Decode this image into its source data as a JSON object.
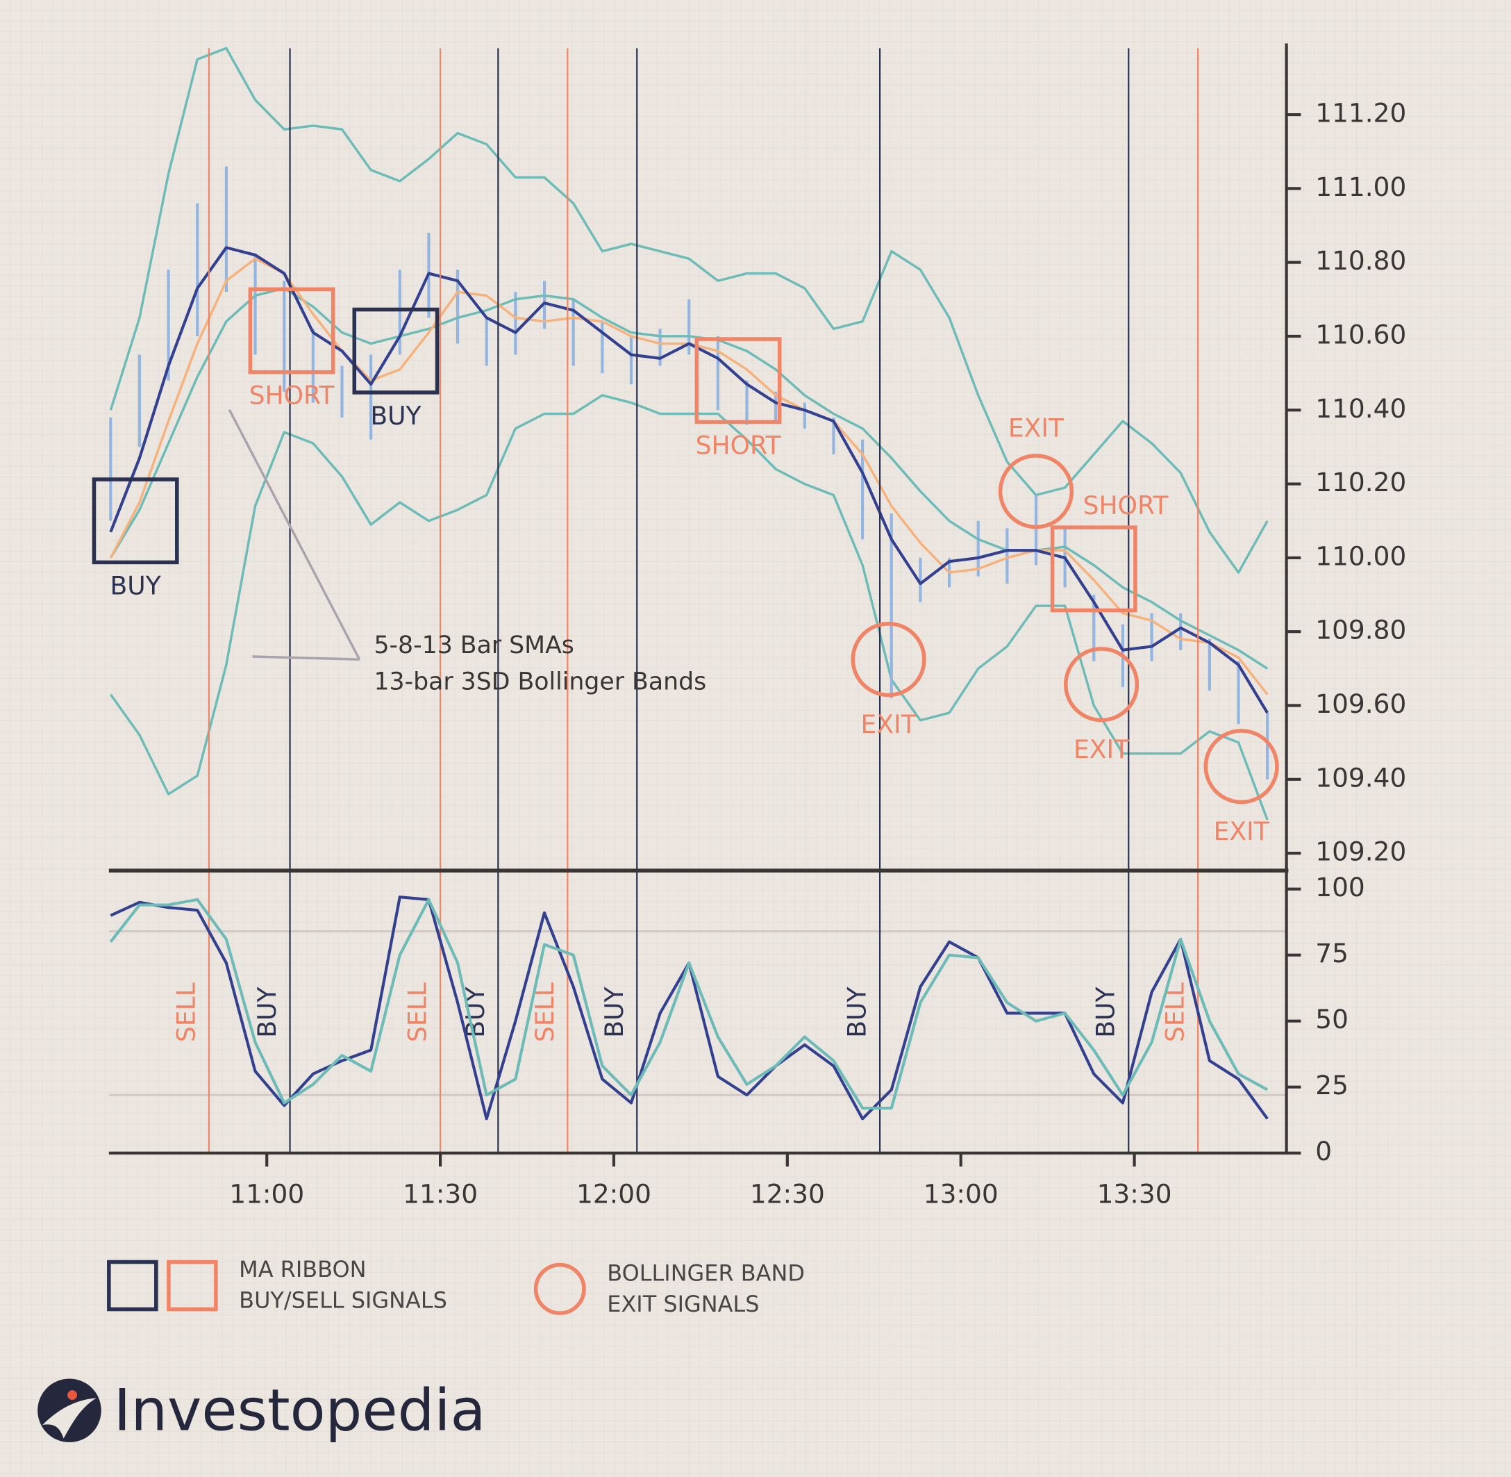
{
  "chart_data": [
    {
      "type": "line",
      "x": [
        633,
        638,
        643,
        648,
        653,
        658,
        663,
        668,
        673,
        678,
        683,
        688,
        693,
        698,
        703,
        708,
        713,
        718,
        723,
        728,
        733,
        738,
        743,
        748,
        753,
        758,
        763,
        768,
        773,
        778,
        783,
        788,
        793,
        798,
        803,
        808,
        813,
        818,
        823,
        828,
        833
      ],
      "xlim": [
        632.7,
        836.3
      ],
      "ylim": [
        109.153,
        111.393
      ],
      "yticks": [
        {
          "value": 109.2,
          "label": "109.20"
        },
        {
          "value": 109.4,
          "label": "109.40"
        },
        {
          "value": 109.6,
          "label": "109.60"
        },
        {
          "value": 109.8,
          "label": "109.80"
        },
        {
          "value": 110,
          "label": "110.00"
        },
        {
          "value": 110.2,
          "label": "110.20"
        },
        {
          "value": 110.4,
          "label": "110.40"
        },
        {
          "value": 110.6,
          "label": "110.60"
        },
        {
          "value": 110.8,
          "label": "110.80"
        },
        {
          "value": 111,
          "label": "111.00"
        },
        {
          "value": 111.2,
          "label": "111.20"
        }
      ],
      "bar_color": "#93b5e1",
      "high": [
        110.38,
        110.55,
        110.78,
        110.96,
        111.06,
        110.82,
        110.75,
        110.62,
        110.52,
        110.55,
        110.78,
        110.88,
        110.78,
        110.65,
        110.72,
        110.75,
        110.7,
        110.64,
        110.6,
        110.62,
        110.7,
        110.6,
        110.48,
        110.45,
        110.42,
        110.38,
        110.32,
        110.12,
        110.0,
        110.0,
        110.1,
        110.08,
        110.17,
        110.08,
        109.9,
        109.82,
        109.85,
        109.85,
        109.78,
        109.72,
        109.58
      ],
      "low": [
        110.1,
        110.3,
        110.48,
        110.6,
        110.72,
        110.55,
        110.45,
        110.42,
        110.38,
        110.32,
        110.55,
        110.65,
        110.58,
        110.52,
        110.55,
        110.62,
        110.52,
        110.5,
        110.47,
        110.52,
        110.55,
        110.4,
        110.36,
        110.37,
        110.35,
        110.28,
        110.05,
        109.62,
        109.88,
        109.92,
        109.95,
        109.93,
        109.98,
        109.92,
        109.72,
        109.65,
        109.72,
        109.75,
        109.64,
        109.55,
        109.4
      ],
      "series": [
        {
          "color": "#6dbbb7",
          "width": 2.5,
          "values": [
            110.4,
            110.65,
            111.04,
            111.35,
            111.38,
            111.24,
            111.16,
            111.17,
            111.16,
            111.05,
            111.02,
            111.08,
            111.15,
            111.12,
            111.03,
            111.03,
            110.96,
            110.83,
            110.85,
            110.83,
            110.81,
            110.75,
            110.77,
            110.77,
            110.73,
            110.62,
            110.64,
            110.83,
            110.78,
            110.65,
            110.44,
            110.26,
            110.17,
            110.19,
            110.28,
            110.37,
            110.31,
            110.23,
            110.07,
            109.96,
            110.1
          ]
        },
        {
          "color": "#6dbbb7",
          "width": 2.5,
          "values": [
            109.63,
            109.52,
            109.36,
            109.41,
            109.71,
            110.14,
            110.34,
            110.31,
            110.22,
            110.09,
            110.15,
            110.1,
            110.13,
            110.17,
            110.35,
            110.39,
            110.39,
            110.44,
            110.42,
            110.39,
            110.39,
            110.39,
            110.32,
            110.24,
            110.2,
            110.17,
            109.98,
            109.67,
            109.56,
            109.58,
            109.7,
            109.76,
            109.87,
            109.87,
            109.6,
            109.47,
            109.47,
            109.47,
            109.53,
            109.5,
            109.29
          ]
        },
        {
          "color": "#6dbbb7",
          "width": 2.5,
          "values": [
            110.0,
            110.13,
            110.31,
            110.49,
            110.64,
            110.71,
            110.73,
            110.68,
            110.61,
            110.58,
            110.6,
            110.62,
            110.65,
            110.67,
            110.7,
            110.71,
            110.7,
            110.65,
            110.61,
            110.6,
            110.6,
            110.59,
            110.56,
            110.51,
            110.44,
            110.39,
            110.35,
            110.27,
            110.18,
            110.1,
            110.05,
            110.02,
            110.02,
            110.03,
            109.98,
            109.92,
            109.88,
            109.83,
            109.79,
            109.75,
            109.7
          ]
        },
        {
          "color": "#f6b27c",
          "width": 2.5,
          "values": [
            110.0,
            110.15,
            110.37,
            110.58,
            110.75,
            110.81,
            110.77,
            110.66,
            110.56,
            110.48,
            110.51,
            110.61,
            110.72,
            110.71,
            110.65,
            110.64,
            110.65,
            110.64,
            110.6,
            110.58,
            110.58,
            110.56,
            110.51,
            110.44,
            110.4,
            110.37,
            110.28,
            110.14,
            110.04,
            109.96,
            109.97,
            110.0,
            110.02,
            110.02,
            109.94,
            109.85,
            109.83,
            109.78,
            109.77,
            109.73,
            109.63
          ]
        },
        {
          "color": "#33408f",
          "width": 3,
          "values": [
            110.07,
            110.27,
            110.52,
            110.73,
            110.84,
            110.82,
            110.77,
            110.61,
            110.56,
            110.47,
            110.6,
            110.77,
            110.75,
            110.65,
            110.61,
            110.69,
            110.67,
            110.61,
            110.55,
            110.54,
            110.58,
            110.54,
            110.47,
            110.42,
            110.4,
            110.37,
            110.23,
            110.05,
            109.93,
            109.99,
            110.0,
            110.02,
            110.02,
            110.0,
            109.88,
            109.75,
            109.76,
            109.81,
            109.77,
            109.71,
            109.58
          ]
        }
      ],
      "annotations": [
        {
          "label": "BUY",
          "shape": "box",
          "color": "#2b3150",
          "x": 637.3,
          "y": 110.1,
          "label_pos": "below"
        },
        {
          "label": "SHORT",
          "shape": "box",
          "color": "#f08466",
          "x": 664.3,
          "y": 110.615,
          "label_pos": "below"
        },
        {
          "label": "BUY",
          "shape": "box",
          "color": "#2b3150",
          "x": 682.3,
          "y": 110.56,
          "label_pos": "below"
        },
        {
          "label": "SHORT",
          "shape": "box",
          "color": "#f08466",
          "x": 741.5,
          "y": 110.48,
          "label_pos": "below"
        },
        {
          "label": "EXIT",
          "shape": "circle",
          "color": "#f08466",
          "x": 767.5,
          "y": 109.725,
          "label_pos": "below"
        },
        {
          "label": "EXIT",
          "shape": "circle",
          "color": "#f08466",
          "x": 793,
          "y": 110.18,
          "label_pos": "above"
        },
        {
          "label": "SHORT",
          "shape": "box",
          "color": "#f08466",
          "x": 803,
          "y": 109.97,
          "label_pos": "above-right"
        },
        {
          "label": "EXIT",
          "shape": "circle",
          "color": "#f08466",
          "x": 804.3,
          "y": 109.657,
          "label_pos": "below"
        },
        {
          "label": "EXIT",
          "shape": "circle",
          "color": "#f08466",
          "x": 828.5,
          "y": 109.435,
          "label_pos": "below"
        }
      ],
      "note": [
        "5-8-13 Bar SMAs",
        "13-bar 3SD Bollinger Bands"
      ]
    },
    {
      "type": "line",
      "x": [
        633,
        638,
        643,
        648,
        653,
        658,
        663,
        668,
        673,
        678,
        683,
        688,
        693,
        698,
        703,
        708,
        713,
        718,
        723,
        728,
        733,
        738,
        743,
        748,
        753,
        758,
        763,
        768,
        773,
        778,
        783,
        788,
        793,
        798,
        803,
        808,
        813,
        818,
        823,
        828,
        833
      ],
      "xlim": [
        632.7,
        836.3
      ],
      "xticks": [
        {
          "value": 660,
          "label": "11:00"
        },
        {
          "value": 690,
          "label": "11:30"
        },
        {
          "value": 720,
          "label": "12:00"
        },
        {
          "value": 750,
          "label": "12:30"
        },
        {
          "value": 780,
          "label": "13:00"
        },
        {
          "value": 810,
          "label": "13:30"
        }
      ],
      "ylim": [
        0,
        107
      ],
      "yticks": [
        0,
        25,
        50,
        75,
        100
      ],
      "levels": [
        84,
        22
      ],
      "series": [
        {
          "color": "#33408f",
          "width": 3,
          "values": [
            90,
            95,
            93,
            92,
            72,
            31,
            18,
            30,
            35,
            39,
            97,
            96,
            57,
            13,
            50,
            91,
            63,
            28,
            19,
            53,
            72,
            29,
            22,
            33,
            41,
            33,
            13,
            24,
            63,
            80,
            74,
            53,
            53,
            53,
            30,
            19,
            61,
            81,
            35,
            28,
            13
          ]
        },
        {
          "color": "#6dbbb7",
          "width": 3,
          "values": [
            80,
            94,
            94,
            96,
            81,
            42,
            19,
            26,
            37,
            31,
            75,
            96,
            72,
            22,
            28,
            79,
            75,
            33,
            22,
            42,
            72,
            44,
            26,
            33,
            44,
            35,
            17,
            17,
            57,
            75,
            74,
            57,
            50,
            53,
            39,
            22,
            42,
            81,
            50,
            30,
            24
          ]
        }
      ],
      "signals": [
        {
          "x": 650,
          "label": "SELL",
          "color": "#f08466"
        },
        {
          "x": 664,
          "label": "BUY",
          "color": "#2b3150"
        },
        {
          "x": 690,
          "label": "SELL",
          "color": "#f08466"
        },
        {
          "x": 700,
          "label": "BUY",
          "color": "#2b3150"
        },
        {
          "x": 712,
          "label": "SELL",
          "color": "#f08466"
        },
        {
          "x": 724,
          "label": "BUY",
          "color": "#2b3150"
        },
        {
          "x": 766,
          "label": "BUY",
          "color": "#2b3150"
        },
        {
          "x": 809,
          "label": "BUY",
          "color": "#2b3150"
        },
        {
          "x": 821,
          "label": "SELL",
          "color": "#f08466"
        }
      ]
    }
  ],
  "legend": [
    {
      "lines": [
        "MA RIBBON",
        "BUY/SELL SIGNALS"
      ]
    },
    {
      "lines": [
        "BOLLINGER BAND",
        "EXIT SIGNALS"
      ]
    }
  ],
  "brand": "Investopedia"
}
